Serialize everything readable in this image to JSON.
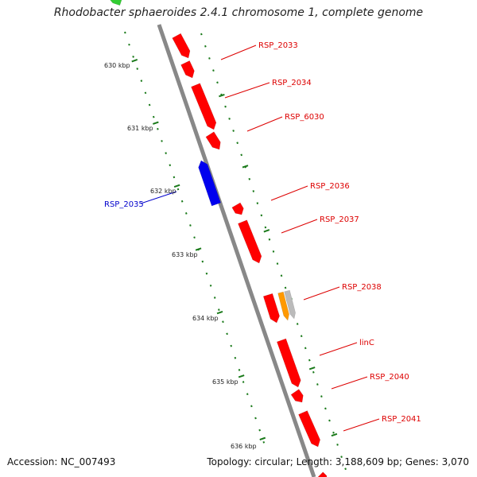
{
  "title": "Rhodobacter sphaeroides 2.4.1 chromosome 1, complete genome",
  "footer": {
    "accession": "Accession: NC_007493",
    "summary": "Topology: circular; Length: 3,188,609 bp; Genes: 3,070"
  },
  "colors": {
    "backbone": "#888888",
    "tick": "#1a7a1a",
    "forward_gene": "#ff0000",
    "reverse_gene": "#0000ee",
    "rna_gene": "#ff9900",
    "pseudo_gene": "#bbbbbb",
    "edge_gene": "#33cc33",
    "label_red": "#dd0000",
    "label_blue": "#0000cc",
    "kbp_text": "#222222"
  },
  "scale_labels": [
    {
      "text": "630 kbp"
    },
    {
      "text": "631 kbp"
    },
    {
      "text": "632 kbp"
    },
    {
      "text": "633 kbp"
    },
    {
      "text": "634 kbp"
    },
    {
      "text": "635 kbp"
    },
    {
      "text": "636 kbp"
    }
  ],
  "gene_labels": [
    {
      "text": "RSP_2033",
      "strand": "forward"
    },
    {
      "text": "RSP_2034",
      "strand": "forward"
    },
    {
      "text": "RSP_6030",
      "strand": "forward"
    },
    {
      "text": "RSP_2035",
      "strand": "reverse"
    },
    {
      "text": "RSP_2036",
      "strand": "forward"
    },
    {
      "text": "RSP_2037",
      "strand": "forward"
    },
    {
      "text": "RSP_2038",
      "strand": "forward"
    },
    {
      "text": "linC",
      "strand": "forward"
    },
    {
      "text": "RSP_2040",
      "strand": "forward"
    },
    {
      "text": "RSP_2041",
      "strand": "forward"
    }
  ]
}
